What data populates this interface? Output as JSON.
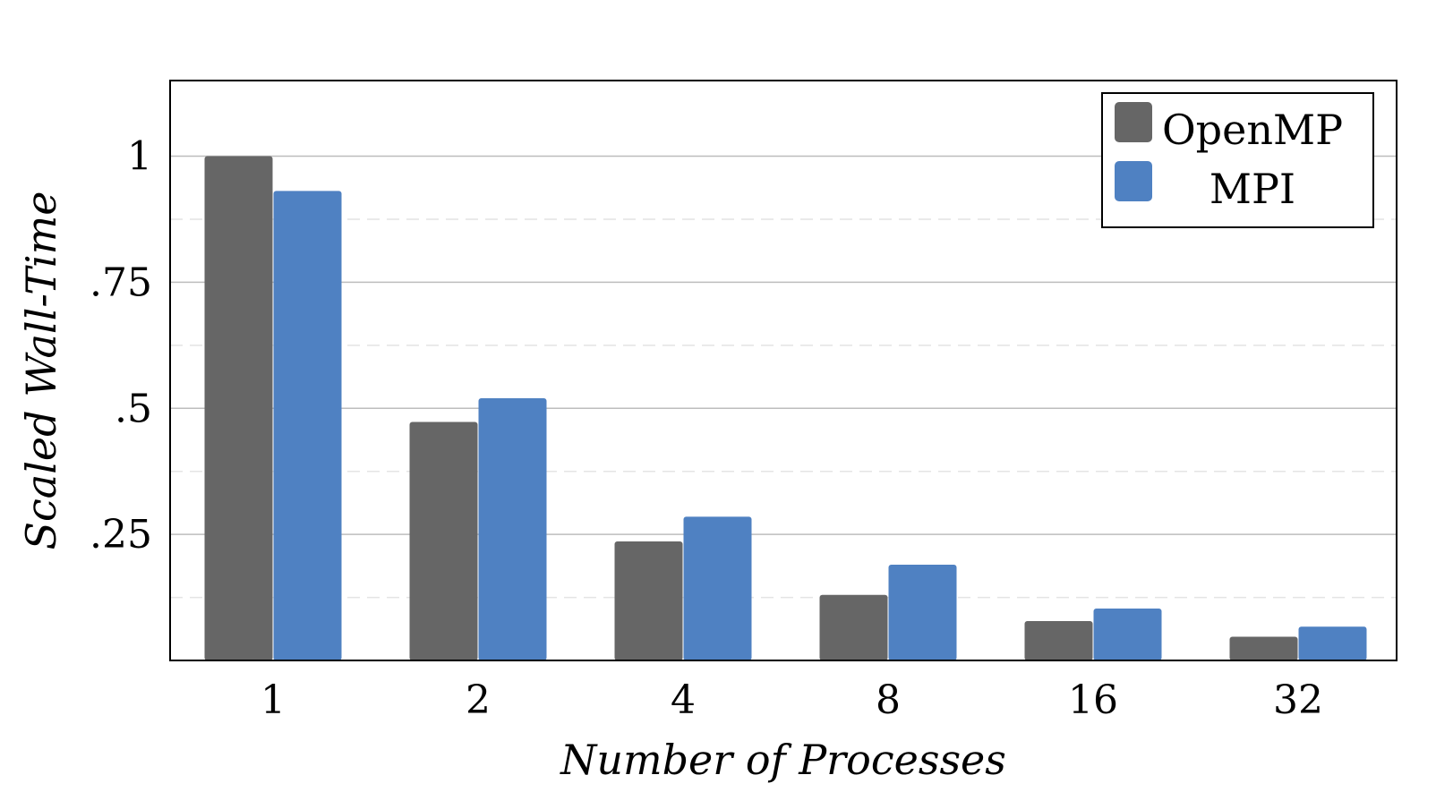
{
  "chart_data": {
    "type": "bar",
    "xlabel": "Number of Processes",
    "ylabel": "Scaled Wall-Time",
    "categories": [
      "1",
      "2",
      "4",
      "8",
      "16",
      "32"
    ],
    "series": [
      {
        "name": "OpenMP",
        "color": "#666666",
        "values": [
          1.0,
          0.473,
          0.236,
          0.13,
          0.078,
          0.047
        ]
      },
      {
        "name": "MPI",
        "color": "#4f81c2",
        "values": [
          0.931,
          0.52,
          0.285,
          0.19,
          0.103,
          0.067
        ]
      }
    ],
    "ylim": [
      0,
      1.15
    ],
    "yticks": [
      0.25,
      0.5,
      0.75,
      1
    ],
    "ytick_labels": [
      ".25",
      ".5",
      ".75",
      "1"
    ],
    "minor_gridlines": [
      0.125,
      0.375,
      0.625,
      0.875
    ],
    "grid": true,
    "legend_position": "top-right"
  }
}
